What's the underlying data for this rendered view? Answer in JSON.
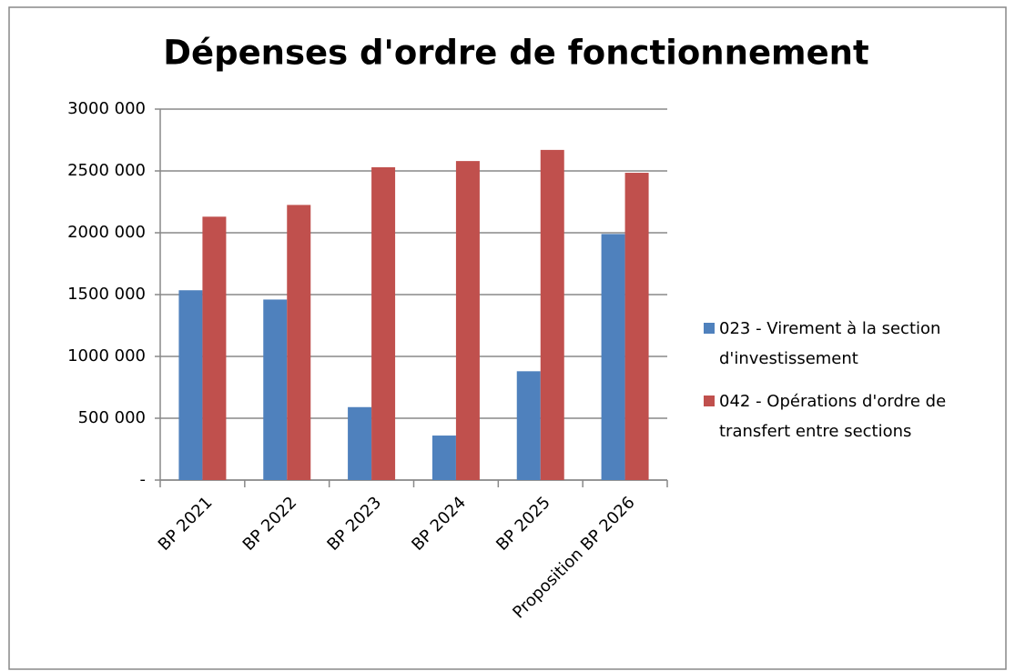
{
  "chart_data": {
    "type": "bar",
    "title": "Dépenses d'ordre de fonctionnement",
    "categories": [
      "BP 2021",
      "BP 2022",
      "BP 2023",
      "BP 2024",
      "BP 2025",
      "Proposition BP 2026"
    ],
    "series": [
      {
        "name": "023 - Virement à la section d'investissement",
        "color": "#4f81bd",
        "values": [
          1535000,
          1460000,
          590000,
          360000,
          880000,
          1990000
        ]
      },
      {
        "name": "042 - Opérations d'ordre de transfert entre sections",
        "color": "#c0504d",
        "values": [
          2130000,
          2225000,
          2530000,
          2580000,
          2670000,
          2485000
        ]
      }
    ],
    "ylim": [
      0,
      3000000
    ],
    "yticks": [
      {
        "value": 0,
        "label": "-"
      },
      {
        "value": 500000,
        "label": "500 000"
      },
      {
        "value": 1000000,
        "label": "1000 000"
      },
      {
        "value": 1500000,
        "label": "1500 000"
      },
      {
        "value": 2000000,
        "label": "2000 000"
      },
      {
        "value": 2500000,
        "label": "2500 000"
      },
      {
        "value": 3000000,
        "label": "3000 000"
      }
    ],
    "grid": true,
    "legend": "right"
  }
}
